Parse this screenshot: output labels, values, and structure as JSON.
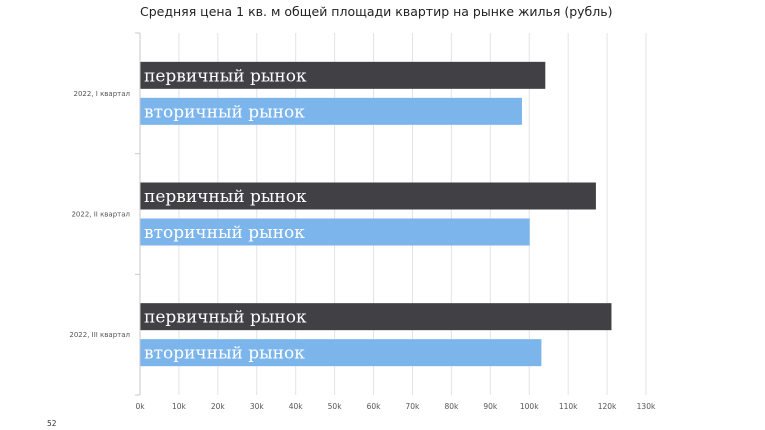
{
  "page_number": "52",
  "chart_data": {
    "type": "bar",
    "orientation": "horizontal",
    "title": "Средняя цена 1 кв. м общей площади квартир на рынке жилья (рубль)",
    "xlabel": "",
    "ylabel": "",
    "categories": [
      "2022, I квартал",
      "2022, II квартал",
      "2022, III квартал"
    ],
    "series": [
      {
        "name": "первичный рынок",
        "color": "#404045",
        "values": [
          104000,
          117000,
          121000
        ]
      },
      {
        "name": "вторичный рынок",
        "color": "#7cb5ec",
        "values": [
          98000,
          100000,
          103000
        ]
      }
    ],
    "xlim": [
      0,
      130000
    ],
    "x_ticks": [
      "0k",
      "10k",
      "20k",
      "30k",
      "40k",
      "50k",
      "60k",
      "70k",
      "80k",
      "90k",
      "100k",
      "110k",
      "120k",
      "130k"
    ],
    "grid": true,
    "legend": "none"
  }
}
